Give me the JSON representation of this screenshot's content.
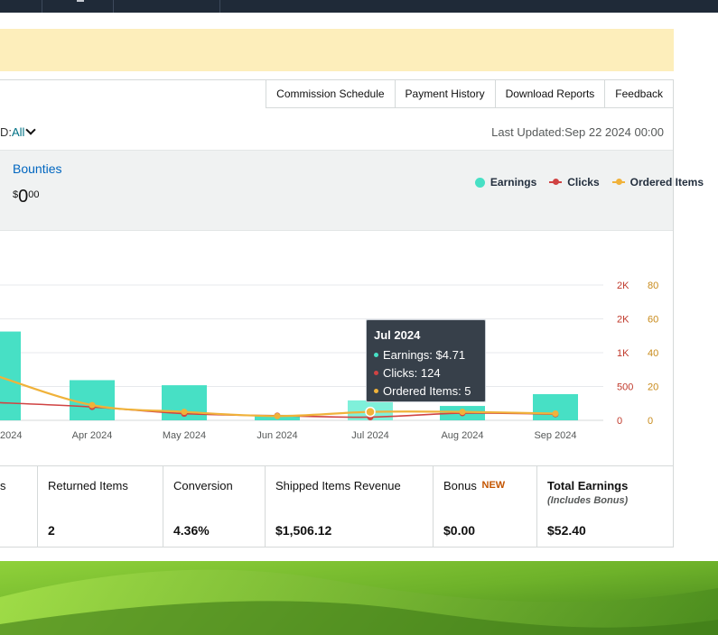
{
  "tabs": [
    "Commission Schedule",
    "Payment History",
    "Download Reports",
    "Feedback"
  ],
  "filter": {
    "label": "D:",
    "value": "All"
  },
  "last_updated": "Last Updated:Sep 22 2024 00:00",
  "summary": {
    "bounties_label": "Bounties",
    "currency": "$",
    "whole": "0",
    "fraction": "00"
  },
  "legend": {
    "earnings": "Earnings",
    "clicks": "Clicks",
    "ordered": "Ordered Items"
  },
  "colors": {
    "earnings": "#47e0c5",
    "clicks": "#d04343",
    "ordered": "#f0b23a",
    "link": "#0066c0",
    "banner": "#fdeebb"
  },
  "tooltip": {
    "title": "Jul 2024",
    "earnings": "Earnings: $4.71",
    "clicks": "Clicks: 124",
    "ordered": "Ordered Items: 5"
  },
  "chart_data": {
    "type": "bar",
    "categories": [
      "2024",
      "Apr 2024",
      "May 2024",
      "Jun 2024",
      "Jul 2024",
      "Aug 2024",
      "Sep 2024"
    ],
    "series": [
      {
        "name": "Earnings",
        "type": "bar",
        "values": [
          21,
          9.5,
          8.3,
          1.3,
          4.71,
          3.4,
          6.2
        ]
      },
      {
        "name": "Clicks",
        "type": "line",
        "axis": "left",
        "values": [
          690,
          520,
          260,
          180,
          124,
          280,
          240
        ]
      },
      {
        "name": "Ordered Items",
        "type": "line",
        "axis": "right",
        "values": [
          26,
          9,
          5,
          2.5,
          5,
          5,
          4
        ]
      }
    ],
    "y_left_ticks": [
      "0",
      "500",
      "1K",
      "2K",
      "2K"
    ],
    "y_right_ticks": [
      "0",
      "20",
      "40",
      "60",
      "80"
    ],
    "ylim_right": [
      0,
      80
    ],
    "ylim_clicks": [
      0,
      2000
    ],
    "tooltip_index": 4
  },
  "metrics": [
    {
      "label": "s",
      "value": ""
    },
    {
      "label": "Returned Items",
      "value": "2"
    },
    {
      "label": "Conversion",
      "value": "4.36%"
    },
    {
      "label": "Shipped Items Revenue",
      "value": "$1,506.12"
    },
    {
      "label": "Bonus",
      "badge": "NEW",
      "value": "$0.00"
    },
    {
      "label": "Total Earnings",
      "sub": "(Includes Bonus)",
      "value": "$52.40"
    }
  ]
}
